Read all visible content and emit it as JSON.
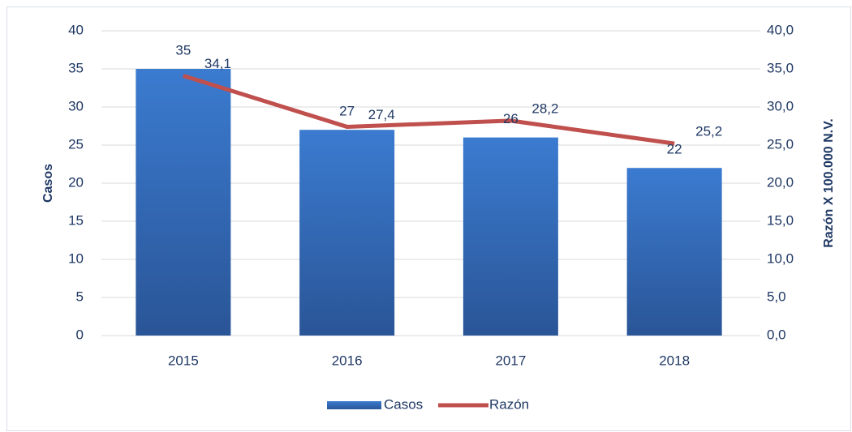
{
  "chart_data": {
    "type": "bar",
    "categories": [
      "2015",
      "2016",
      "2017",
      "2018"
    ],
    "series": [
      {
        "name": "Casos",
        "type": "bar",
        "color": "#2e64b5",
        "values": [
          35,
          27,
          26,
          22
        ]
      },
      {
        "name": "Razón",
        "type": "line",
        "axis": "y2",
        "color": "#c0504d",
        "values": [
          34.1,
          27.4,
          28.2,
          25.2
        ],
        "value_labels": [
          "34,1",
          "27,4",
          "28,2",
          "25,2"
        ]
      }
    ],
    "ylabel": "Casos",
    "y2label": "Razón X 100.000 N.V.",
    "ylim": [
      0,
      40
    ],
    "yticks": [
      0,
      5,
      10,
      15,
      20,
      25,
      30,
      35,
      40
    ],
    "y2lim": [
      0,
      40
    ],
    "y2ticks": [
      {
        "value": 0,
        "label": "0,0"
      },
      {
        "value": 5,
        "label": "5,0"
      },
      {
        "value": 10,
        "label": "10,0"
      },
      {
        "value": 15,
        "label": "15,0"
      },
      {
        "value": 20,
        "label": "20,0"
      },
      {
        "value": 25,
        "label": "25,0"
      },
      {
        "value": 30,
        "label": "30,0"
      },
      {
        "value": 35,
        "label": "35,0"
      },
      {
        "value": 40,
        "label": "40,0"
      }
    ],
    "grid": true,
    "legend": "bottom"
  }
}
